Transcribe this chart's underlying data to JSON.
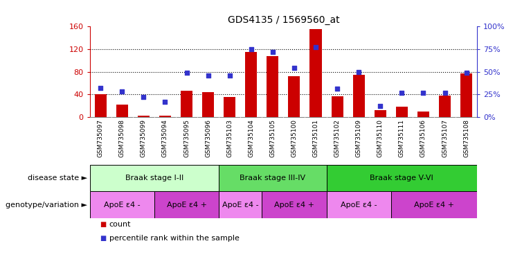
{
  "title": "GDS4135 / 1569560_at",
  "samples": [
    "GSM735097",
    "GSM735098",
    "GSM735099",
    "GSM735094",
    "GSM735095",
    "GSM735096",
    "GSM735103",
    "GSM735104",
    "GSM735105",
    "GSM735100",
    "GSM735101",
    "GSM735102",
    "GSM735109",
    "GSM735110",
    "GSM735111",
    "GSM735106",
    "GSM735107",
    "GSM735108"
  ],
  "counts": [
    40,
    22,
    3,
    3,
    46,
    44,
    36,
    115,
    108,
    72,
    155,
    37,
    75,
    12,
    18,
    10,
    38,
    77
  ],
  "percentiles": [
    32,
    28,
    22,
    17,
    49,
    46,
    46,
    75,
    72,
    54,
    77,
    31,
    50,
    12,
    27,
    27,
    27,
    49
  ],
  "bar_color": "#cc0000",
  "dot_color": "#3333cc",
  "ylim_left": [
    0,
    160
  ],
  "ylim_right": [
    0,
    100
  ],
  "yticks_left": [
    0,
    40,
    80,
    120,
    160
  ],
  "yticks_right": [
    0,
    25,
    50,
    75,
    100
  ],
  "ytick_labels_right": [
    "0%",
    "25%",
    "50%",
    "75%",
    "100%"
  ],
  "disease_state_groups": [
    {
      "label": "Braak stage I-II",
      "start": 0,
      "end": 6,
      "color": "#ccffcc"
    },
    {
      "label": "Braak stage III-IV",
      "start": 6,
      "end": 11,
      "color": "#66dd66"
    },
    {
      "label": "Braak stage V-VI",
      "start": 11,
      "end": 18,
      "color": "#33cc33"
    }
  ],
  "genotype_groups": [
    {
      "label": "ApoE ε4 -",
      "start": 0,
      "end": 3,
      "color": "#ee88ee"
    },
    {
      "label": "ApoE ε4 +",
      "start": 3,
      "end": 6,
      "color": "#cc44cc"
    },
    {
      "label": "ApoE ε4 -",
      "start": 6,
      "end": 8,
      "color": "#ee88ee"
    },
    {
      "label": "ApoE ε4 +",
      "start": 8,
      "end": 11,
      "color": "#cc44cc"
    },
    {
      "label": "ApoE ε4 -",
      "start": 11,
      "end": 14,
      "color": "#ee88ee"
    },
    {
      "label": "ApoE ε4 +",
      "start": 14,
      "end": 18,
      "color": "#cc44cc"
    }
  ],
  "legend_count_label": "count",
  "legend_pct_label": "percentile rank within the sample",
  "disease_state_label": "disease state",
  "genotype_label": "genotype/variation",
  "background_color": "#ffffff",
  "left_axis_color": "#cc0000",
  "right_axis_color": "#3333cc",
  "xtick_bg": "#dddddd",
  "bar_width": 0.55
}
